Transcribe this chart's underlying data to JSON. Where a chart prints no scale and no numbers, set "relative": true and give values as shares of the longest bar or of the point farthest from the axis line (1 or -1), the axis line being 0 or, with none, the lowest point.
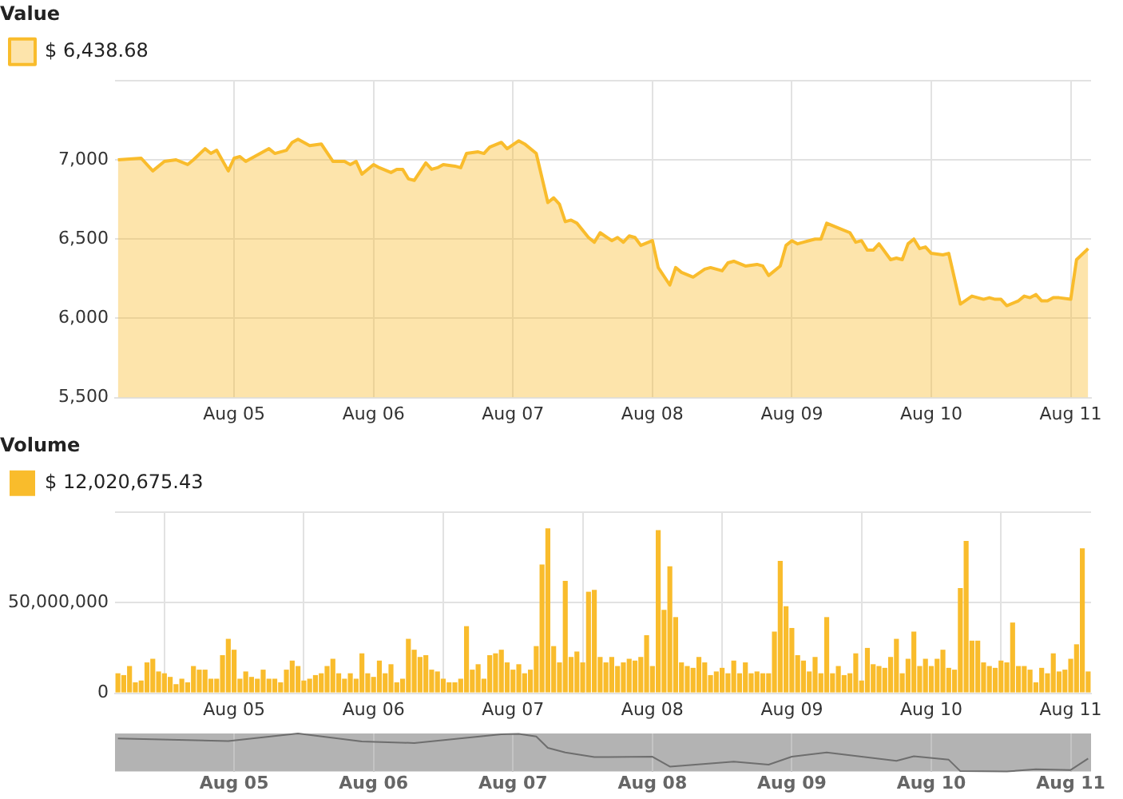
{
  "chart_data": [
    {
      "type": "area",
      "title": "Value",
      "legend": "top left",
      "grid": true,
      "series": [
        {
          "name": "$ 6,438.68",
          "color": "#f9bc2c",
          "x": [
            "--08-04T04:00",
            "--08-04T08:00",
            "--08-04T10:00",
            "--08-04T12:00",
            "--08-04T14:00",
            "--08-04T16:00",
            "--08-04T17:00",
            "--08-04T19:00",
            "--08-04T20:00",
            "--08-04T21:00",
            "--08-04T23:00",
            "--08-05T00:00",
            "--08-05T01:00",
            "--08-05T02:00",
            "--08-05T06:00",
            "--08-05T07:00",
            "--08-05T09:00",
            "--08-05T10:00",
            "--08-05T11:00",
            "--08-05T13:00",
            "--08-05T15:00",
            "--08-05T17:00",
            "--08-05T19:00",
            "--08-05T20:00",
            "--08-05T21:00",
            "--08-05T22:00",
            "--08-06T00:00",
            "--08-06T01:00",
            "--08-06T03:00",
            "--08-06T04:00",
            "--08-06T05:00",
            "--08-06T06:00",
            "--08-06T07:00",
            "--08-06T09:00",
            "--08-06T10:00",
            "--08-06T11:00",
            "--08-06T12:00",
            "--08-06T14:00",
            "--08-06T15:00",
            "--08-06T16:00",
            "--08-06T18:00",
            "--08-06T19:00",
            "--08-06T20:00",
            "--08-06T22:00",
            "--08-06T23:00",
            "--08-07T01:00",
            "--08-07T02:00",
            "--08-07T04:00",
            "--08-07T06:00",
            "--08-07T07:00",
            "--08-07T08:00",
            "--08-07T09:00",
            "--08-07T10:00",
            "--08-07T11:00",
            "--08-07T13:00",
            "--08-07T14:00",
            "--08-07T15:00",
            "--08-07T17:00",
            "--08-07T18:00",
            "--08-07T19:00",
            "--08-07T20:00",
            "--08-07T21:00",
            "--08-07T22:00",
            "--08-08T00:00",
            "--08-08T01:00",
            "--08-08T03:00",
            "--08-08T04:00",
            "--08-08T05:00",
            "--08-08T07:00",
            "--08-08T09:00",
            "--08-08T10:00",
            "--08-08T12:00",
            "--08-08T13:00",
            "--08-08T14:00",
            "--08-08T16:00",
            "--08-08T18:00",
            "--08-08T19:00",
            "--08-08T20:00",
            "--08-08T22:00",
            "--08-08T23:00",
            "--08-09T00:00",
            "--08-09T01:00",
            "--08-09T02:00",
            "--08-09T04:00",
            "--08-09T05:00",
            "--08-09T06:00",
            "--08-09T08:00",
            "--08-09T10:00",
            "--08-09T11:00",
            "--08-09T12:00",
            "--08-09T13:00",
            "--08-09T14:00",
            "--08-09T15:00",
            "--08-09T17:00",
            "--08-09T18:00",
            "--08-09T19:00",
            "--08-09T20:00",
            "--08-09T21:00",
            "--08-09T22:00",
            "--08-09T23:00",
            "--08-10T00:00",
            "--08-10T02:00",
            "--08-10T03:00",
            "--08-10T05:00",
            "--08-10T07:00",
            "--08-10T09:00",
            "--08-10T10:00",
            "--08-10T11:00",
            "--08-10T12:00",
            "--08-10T13:00",
            "--08-10T15:00",
            "--08-10T16:00",
            "--08-10T17:00",
            "--08-10T18:00",
            "--08-10T19:00",
            "--08-10T20:00",
            "--08-10T21:00",
            "--08-10T22:00",
            "--08-11T00:00",
            "--08-11T01:00",
            "--08-11T03:00"
          ],
          "values": [
            7000,
            7010,
            6930,
            6990,
            7000,
            6970,
            7000,
            7070,
            7040,
            7060,
            6930,
            7010,
            7020,
            6990,
            7070,
            7040,
            7060,
            7110,
            7130,
            7090,
            7100,
            6990,
            6990,
            6970,
            6990,
            6910,
            6970,
            6950,
            6920,
            6940,
            6940,
            6880,
            6870,
            6980,
            6940,
            6950,
            6970,
            6960,
            6950,
            7040,
            7050,
            7040,
            7080,
            7110,
            7070,
            7120,
            7100,
            7040,
            6730,
            6760,
            6720,
            6610,
            6620,
            6600,
            6510,
            6480,
            6540,
            6490,
            6510,
            6480,
            6520,
            6510,
            6460,
            6490,
            6320,
            6210,
            6320,
            6290,
            6260,
            6310,
            6320,
            6300,
            6350,
            6360,
            6330,
            6340,
            6330,
            6270,
            6330,
            6460,
            6490,
            6470,
            6480,
            6500,
            6500,
            6600,
            6570,
            6540,
            6480,
            6490,
            6430,
            6430,
            6470,
            6370,
            6380,
            6370,
            6470,
            6500,
            6440,
            6450,
            6410,
            6400,
            6410,
            6090,
            6140,
            6120,
            6130,
            6120,
            6120,
            6080,
            6110,
            6140,
            6130,
            6150,
            6110,
            6110,
            6130,
            6130,
            6120,
            6370,
            6440
          ]
        }
      ],
      "xlim": [
        "--08-04T03:30",
        "--08-11T03:30"
      ],
      "xticks": [
        {
          "value": "--08-05",
          "label": "Aug 05"
        },
        {
          "value": "--08-06",
          "label": "Aug 06"
        },
        {
          "value": "--08-07",
          "label": "Aug 07"
        },
        {
          "value": "--08-08",
          "label": "Aug 08"
        },
        {
          "value": "--08-09",
          "label": "Aug 09"
        },
        {
          "value": "--08-10",
          "label": "Aug 10"
        },
        {
          "value": "--08-11",
          "label": "Aug 11"
        }
      ],
      "ylim": [
        5500,
        7500
      ],
      "yticks": [
        {
          "value": 5500,
          "label": "5,500"
        },
        {
          "value": 6000,
          "label": "6,000"
        },
        {
          "value": 6500,
          "label": "6,500"
        },
        {
          "value": 7000,
          "label": "7,000"
        },
        {
          "value": 7500,
          "label": null
        }
      ]
    },
    {
      "type": "bar",
      "title": "Volume",
      "legend": "top left",
      "grid": true,
      "series": [
        {
          "name": "$ 12,020,675.43",
          "color": "#f9bc2c",
          "x": [
            "--08-04T04:00",
            "--08-04T05:00",
            "--08-04T06:00",
            "--08-04T07:00",
            "--08-04T08:00",
            "--08-04T09:00",
            "--08-04T10:00",
            "--08-04T11:00",
            "--08-04T12:00",
            "--08-04T13:00",
            "--08-04T14:00",
            "--08-04T15:00",
            "--08-04T16:00",
            "--08-04T17:00",
            "--08-04T18:00",
            "--08-04T19:00",
            "--08-04T20:00",
            "--08-04T21:00",
            "--08-04T22:00",
            "--08-04T23:00",
            "--08-05T00:00",
            "--08-05T01:00",
            "--08-05T02:00",
            "--08-05T03:00",
            "--08-05T04:00",
            "--08-05T05:00",
            "--08-05T06:00",
            "--08-05T07:00",
            "--08-05T08:00",
            "--08-05T09:00",
            "--08-05T10:00",
            "--08-05T11:00",
            "--08-05T12:00",
            "--08-05T13:00",
            "--08-05T14:00",
            "--08-05T15:00",
            "--08-05T16:00",
            "--08-05T17:00",
            "--08-05T18:00",
            "--08-05T19:00",
            "--08-05T20:00",
            "--08-05T21:00",
            "--08-05T22:00",
            "--08-05T23:00",
            "--08-06T00:00",
            "--08-06T01:00",
            "--08-06T02:00",
            "--08-06T03:00",
            "--08-06T04:00",
            "--08-06T05:00",
            "--08-06T06:00",
            "--08-06T07:00",
            "--08-06T08:00",
            "--08-06T09:00",
            "--08-06T10:00",
            "--08-06T11:00",
            "--08-06T12:00",
            "--08-06T13:00",
            "--08-06T14:00",
            "--08-06T15:00",
            "--08-06T16:00",
            "--08-06T17:00",
            "--08-06T18:00",
            "--08-06T19:00",
            "--08-06T20:00",
            "--08-06T21:00",
            "--08-06T22:00",
            "--08-06T23:00",
            "--08-07T00:00",
            "--08-07T01:00",
            "--08-07T02:00",
            "--08-07T03:00",
            "--08-07T04:00",
            "--08-07T05:00",
            "--08-07T06:00",
            "--08-07T07:00",
            "--08-07T08:00",
            "--08-07T09:00",
            "--08-07T10:00",
            "--08-07T11:00",
            "--08-07T12:00",
            "--08-07T13:00",
            "--08-07T14:00",
            "--08-07T15:00",
            "--08-07T16:00",
            "--08-07T17:00",
            "--08-07T18:00",
            "--08-07T19:00",
            "--08-07T20:00",
            "--08-07T21:00",
            "--08-07T22:00",
            "--08-07T23:00",
            "--08-08T00:00",
            "--08-08T01:00",
            "--08-08T02:00",
            "--08-08T03:00",
            "--08-08T04:00",
            "--08-08T05:00",
            "--08-08T06:00",
            "--08-08T07:00",
            "--08-08T08:00",
            "--08-08T09:00",
            "--08-08T10:00",
            "--08-08T11:00",
            "--08-08T12:00",
            "--08-08T13:00",
            "--08-08T14:00",
            "--08-08T15:00",
            "--08-08T16:00",
            "--08-08T17:00",
            "--08-08T18:00",
            "--08-08T19:00",
            "--08-08T20:00",
            "--08-08T21:00",
            "--08-08T22:00",
            "--08-08T23:00",
            "--08-09T00:00",
            "--08-09T01:00",
            "--08-09T02:00",
            "--08-09T03:00",
            "--08-09T04:00",
            "--08-09T05:00",
            "--08-09T06:00",
            "--08-09T07:00",
            "--08-09T08:00",
            "--08-09T09:00",
            "--08-09T10:00",
            "--08-09T11:00",
            "--08-09T12:00",
            "--08-09T13:00",
            "--08-09T14:00",
            "--08-09T15:00",
            "--08-09T16:00",
            "--08-09T17:00",
            "--08-09T18:00",
            "--08-09T19:00",
            "--08-09T20:00",
            "--08-09T21:00",
            "--08-09T22:00",
            "--08-09T23:00",
            "--08-10T00:00",
            "--08-10T01:00",
            "--08-10T02:00",
            "--08-10T03:00",
            "--08-10T04:00",
            "--08-10T05:00",
            "--08-10T06:00",
            "--08-10T07:00",
            "--08-10T08:00",
            "--08-10T09:00",
            "--08-10T10:00",
            "--08-10T11:00",
            "--08-10T12:00",
            "--08-10T13:00",
            "--08-10T14:00",
            "--08-10T15:00",
            "--08-10T16:00",
            "--08-10T17:00",
            "--08-10T18:00",
            "--08-10T19:00",
            "--08-10T20:00",
            "--08-10T21:00",
            "--08-10T22:00",
            "--08-10T23:00",
            "--08-11T00:00",
            "--08-11T01:00",
            "--08-11T02:00",
            "--08-11T03:00"
          ],
          "values": [
            11000000,
            10000000,
            15000000,
            6000000,
            7000000,
            17000000,
            19000000,
            12000000,
            11000000,
            9000000,
            5000000,
            8000000,
            6000000,
            15000000,
            13000000,
            13000000,
            8000000,
            8000000,
            21000000,
            30000000,
            24000000,
            8000000,
            12000000,
            9000000,
            8000000,
            13000000,
            8000000,
            8000000,
            6000000,
            13000000,
            18000000,
            15000000,
            7000000,
            8000000,
            10000000,
            11000000,
            15000000,
            19000000,
            11000000,
            8000000,
            11000000,
            8000000,
            22000000,
            11000000,
            9000000,
            18000000,
            11000000,
            16000000,
            6000000,
            8000000,
            30000000,
            24000000,
            20000000,
            21000000,
            13000000,
            12000000,
            8000000,
            6000000,
            6000000,
            8000000,
            37000000,
            13000000,
            16000000,
            8000000,
            21000000,
            22000000,
            24000000,
            17000000,
            13000000,
            16000000,
            11000000,
            13000000,
            26000000,
            71000000,
            91000000,
            26000000,
            17000000,
            62000000,
            20000000,
            23000000,
            17000000,
            56000000,
            57000000,
            20000000,
            17000000,
            20000000,
            15000000,
            17000000,
            19000000,
            18000000,
            20000000,
            32000000,
            15000000,
            90000000,
            46000000,
            70000000,
            42000000,
            17000000,
            15000000,
            14000000,
            20000000,
            17000000,
            10000000,
            12000000,
            14000000,
            11000000,
            18000000,
            11000000,
            17000000,
            11000000,
            12000000,
            11000000,
            11000000,
            34000000,
            73000000,
            48000000,
            36000000,
            21000000,
            18000000,
            12000000,
            20000000,
            11000000,
            42000000,
            11000000,
            15000000,
            10000000,
            11000000,
            22000000,
            7000000,
            25000000,
            16000000,
            15000000,
            14000000,
            20000000,
            30000000,
            11000000,
            19000000,
            34000000,
            15000000,
            19000000,
            15000000,
            19000000,
            24000000,
            14000000,
            13000000,
            58000000,
            84000000,
            29000000,
            29000000,
            17000000,
            15000000,
            14000000,
            18000000,
            17000000,
            39000000,
            15000000,
            15000000,
            13000000,
            6000000,
            14000000,
            11000000,
            22000000,
            12000000,
            13000000,
            19000000,
            27000000,
            80000000,
            12000000
          ]
        }
      ],
      "xlim": [
        "--08-04T03:30",
        "--08-11T03:30"
      ],
      "xticks": [
        {
          "value": "--08-05",
          "label": "Aug 05"
        },
        {
          "value": "--08-06",
          "label": "Aug 06"
        },
        {
          "value": "--08-07",
          "label": "Aug 07"
        },
        {
          "value": "--08-08",
          "label": "Aug 08"
        },
        {
          "value": "--08-09",
          "label": "Aug 09"
        },
        {
          "value": "--08-10",
          "label": "Aug 10"
        },
        {
          "value": "--08-11",
          "label": "Aug 11"
        }
      ],
      "ylim": [
        0,
        100000000
      ],
      "yticks": [
        0,
        {
          "value": 50000000,
          "label": "50,000,000"
        },
        {
          "value": 100000000,
          "label": null
        }
      ]
    },
    {
      "type": "line",
      "relative": true,
      "grid": "x",
      "series": [
        {
          "color": "#6e6e6e",
          "x": [
            "--08-04T04:00",
            "--08-04T23:00",
            "--08-05T11:00",
            "--08-05T22:00",
            "--08-06T07:00",
            "--08-06T22:00",
            "--08-07T01:00",
            "--08-07T04:00",
            "--08-07T06:00",
            "--08-07T09:00",
            "--08-07T14:00",
            "--08-08T00:00",
            "--08-08T03:00",
            "--08-08T14:00",
            "--08-08T20:00",
            "--08-09T00:00",
            "--08-09T06:00",
            "--08-09T18:00",
            "--08-09T21:00",
            "--08-10T03:00",
            "--08-10T05:00",
            "--08-10T13:00",
            "--08-10T18:00",
            "--08-11T00:00",
            "--08-11T03:00"
          ],
          "values": [
            0.87,
            0.8,
            1,
            0.79,
            0.75,
            0.98,
            0.99,
            0.92,
            0.62,
            0.5,
            0.38,
            0.39,
            0.13,
            0.26,
            0.18,
            0.39,
            0.5,
            0.28,
            0.4,
            0.31,
            0.01,
            0,
            0.06,
            0.04,
            0.34
          ]
        }
      ],
      "xlim": [
        "--08-04T03:30",
        "--08-11T03:30"
      ],
      "xticks": [
        {
          "value": "--08-05",
          "label": "Aug 05"
        },
        {
          "value": "--08-06",
          "label": "Aug 06"
        },
        {
          "value": "--08-07",
          "label": "Aug 07"
        },
        {
          "value": "--08-08",
          "label": "Aug 08"
        },
        {
          "value": "--08-09",
          "label": "Aug 09"
        },
        {
          "value": "--08-10",
          "label": "Aug 10"
        },
        {
          "value": "--08-11",
          "label": "Aug 11"
        }
      ]
    }
  ]
}
